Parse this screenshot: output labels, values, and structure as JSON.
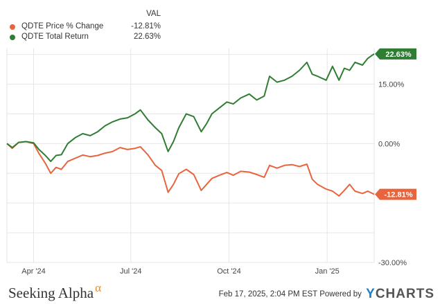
{
  "legend": {
    "header": "VAL",
    "items": [
      {
        "name": "QDTE Price % Change",
        "value": "-12.81%",
        "color": "#e8643c"
      },
      {
        "name": "QDTE Total Return",
        "value": "22.63%",
        "color": "#2e7d32"
      }
    ]
  },
  "footer": {
    "logo_text": "Seeking Alpha",
    "logo_symbol": "α",
    "timestamp": "Feb 17, 2025, 2:04 PM EST",
    "powered_by": "Powered by",
    "brand_y": "Y",
    "brand_rest": "CHARTS"
  },
  "chart_data": {
    "type": "line",
    "x_tick_labels": [
      "Apr '24",
      "Jul '24",
      "Oct '24",
      "Jan '25"
    ],
    "x_ticks": [
      "2024-04-01",
      "2024-07-01",
      "2024-10-01",
      "2025-01-01"
    ],
    "x_range": [
      "2024-03-07",
      "2025-02-14"
    ],
    "y_tick_labels": [
      "15.00%",
      "0.00%",
      "-30.00%"
    ],
    "y_ticks": [
      15,
      0,
      -30
    ],
    "ylim": [
      -30,
      24
    ],
    "grid": true,
    "series": [
      {
        "name": "QDTE Price % Change",
        "color": "#e8643c",
        "end_label": "-12.81%",
        "points": [
          [
            "2024-03-07",
            0
          ],
          [
            "2024-03-12",
            -1.2
          ],
          [
            "2024-03-18",
            0.3
          ],
          [
            "2024-03-25",
            0.5
          ],
          [
            "2024-04-01",
            0
          ],
          [
            "2024-04-06",
            -2.5
          ],
          [
            "2024-04-12",
            -5.0
          ],
          [
            "2024-04-17",
            -7.5
          ],
          [
            "2024-04-22",
            -6.0
          ],
          [
            "2024-04-27",
            -6.5
          ],
          [
            "2024-05-03",
            -4.5
          ],
          [
            "2024-05-10",
            -3.7
          ],
          [
            "2024-05-17",
            -2.9
          ],
          [
            "2024-05-24",
            -3.3
          ],
          [
            "2024-05-31",
            -3.0
          ],
          [
            "2024-06-07",
            -2.4
          ],
          [
            "2024-06-14",
            -2.0
          ],
          [
            "2024-06-21",
            -1.0
          ],
          [
            "2024-06-28",
            -1.5
          ],
          [
            "2024-07-05",
            -1.2
          ],
          [
            "2024-07-10",
            -0.8
          ],
          [
            "2024-07-17",
            -2.8
          ],
          [
            "2024-07-24",
            -5.5
          ],
          [
            "2024-07-30",
            -6.8
          ],
          [
            "2024-08-05",
            -12.3
          ],
          [
            "2024-08-10",
            -10.3
          ],
          [
            "2024-08-15",
            -7.6
          ],
          [
            "2024-08-22",
            -6.5
          ],
          [
            "2024-08-29",
            -7.8
          ],
          [
            "2024-09-05",
            -11.8
          ],
          [
            "2024-09-10",
            -10.3
          ],
          [
            "2024-09-15",
            -8.8
          ],
          [
            "2024-09-22",
            -8.0
          ],
          [
            "2024-09-29",
            -7.3
          ],
          [
            "2024-10-05",
            -8.0
          ],
          [
            "2024-10-12",
            -7.0
          ],
          [
            "2024-10-20",
            -7.2
          ],
          [
            "2024-10-27",
            -7.8
          ],
          [
            "2024-11-03",
            -8.5
          ],
          [
            "2024-11-08",
            -5.5
          ],
          [
            "2024-11-15",
            -6.2
          ],
          [
            "2024-11-22",
            -5.5
          ],
          [
            "2024-11-29",
            -5.3
          ],
          [
            "2024-12-06",
            -5.8
          ],
          [
            "2024-12-13",
            -5.2
          ],
          [
            "2024-12-18",
            -9.0
          ],
          [
            "2024-12-23",
            -10.3
          ],
          [
            "2024-12-31",
            -11.5
          ],
          [
            "2025-01-06",
            -12.0
          ],
          [
            "2025-01-12",
            -13.2
          ],
          [
            "2025-01-17",
            -11.8
          ],
          [
            "2025-01-22",
            -10.3
          ],
          [
            "2025-01-27",
            -12.0
          ],
          [
            "2025-02-03",
            -12.6
          ],
          [
            "2025-02-08",
            -12.0
          ],
          [
            "2025-02-14",
            -12.81
          ]
        ]
      },
      {
        "name": "QDTE Total Return",
        "color": "#2e7d32",
        "end_label": "22.63%",
        "points": [
          [
            "2024-03-07",
            0
          ],
          [
            "2024-03-12",
            -1.0
          ],
          [
            "2024-03-18",
            0.3
          ],
          [
            "2024-03-25",
            0.5
          ],
          [
            "2024-04-01",
            0.2
          ],
          [
            "2024-04-06",
            -1.5
          ],
          [
            "2024-04-12",
            -3.0
          ],
          [
            "2024-04-17",
            -4.5
          ],
          [
            "2024-04-22",
            -3.0
          ],
          [
            "2024-04-27",
            -2.8
          ],
          [
            "2024-05-03",
            0.0
          ],
          [
            "2024-05-10",
            1.5
          ],
          [
            "2024-05-17",
            2.5
          ],
          [
            "2024-05-24",
            2.0
          ],
          [
            "2024-05-31",
            3.0
          ],
          [
            "2024-06-07",
            4.5
          ],
          [
            "2024-06-14",
            5.5
          ],
          [
            "2024-06-21",
            6.2
          ],
          [
            "2024-06-28",
            6.5
          ],
          [
            "2024-07-05",
            7.5
          ],
          [
            "2024-07-10",
            8.5
          ],
          [
            "2024-07-17",
            6.0
          ],
          [
            "2024-07-24",
            4.0
          ],
          [
            "2024-07-30",
            2.5
          ],
          [
            "2024-08-05",
            -2.0
          ],
          [
            "2024-08-10",
            0.5
          ],
          [
            "2024-08-15",
            4.0
          ],
          [
            "2024-08-22",
            7.5
          ],
          [
            "2024-08-29",
            6.8
          ],
          [
            "2024-09-05",
            3.0
          ],
          [
            "2024-09-10",
            5.0
          ],
          [
            "2024-09-15",
            7.5
          ],
          [
            "2024-09-22",
            9.0
          ],
          [
            "2024-09-29",
            10.5
          ],
          [
            "2024-10-05",
            10.0
          ],
          [
            "2024-10-12",
            11.5
          ],
          [
            "2024-10-20",
            12.5
          ],
          [
            "2024-10-27",
            11.0
          ],
          [
            "2024-11-03",
            12.0
          ],
          [
            "2024-11-08",
            17.0
          ],
          [
            "2024-11-15",
            15.5
          ],
          [
            "2024-11-22",
            16.0
          ],
          [
            "2024-11-29",
            17.0
          ],
          [
            "2024-12-06",
            18.5
          ],
          [
            "2024-12-13",
            20.5
          ],
          [
            "2024-12-18",
            17.5
          ],
          [
            "2024-12-23",
            17.0
          ],
          [
            "2024-12-31",
            16.0
          ],
          [
            "2025-01-06",
            19.5
          ],
          [
            "2025-01-12",
            16.0
          ],
          [
            "2025-01-17",
            19.0
          ],
          [
            "2025-01-22",
            18.5
          ],
          [
            "2025-01-27",
            20.5
          ],
          [
            "2025-02-03",
            19.8
          ],
          [
            "2025-02-08",
            21.5
          ],
          [
            "2025-02-14",
            22.63
          ]
        ]
      }
    ]
  }
}
